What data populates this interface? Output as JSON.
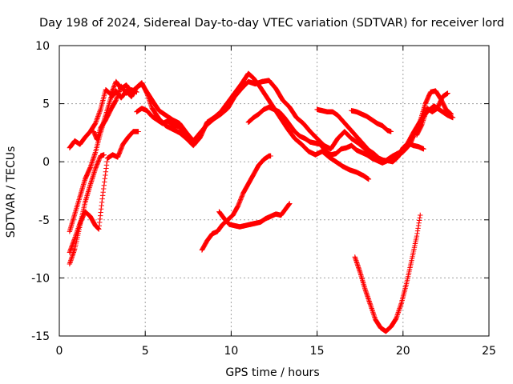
{
  "chart_data": {
    "type": "scatter",
    "title": "Day 198 of 2024, Sidereal Day-to-day VTEC variation (SDTVAR) for receiver lord",
    "xlabel": "GPS time / hours",
    "ylabel": "SDTVAR / TECUs",
    "xlim": [
      0,
      25
    ],
    "ylim": [
      -15,
      10
    ],
    "xticks": [
      0,
      5,
      10,
      15,
      20,
      25
    ],
    "yticks": [
      -15,
      -10,
      -5,
      0,
      5,
      10
    ],
    "grid": true,
    "legend": "none",
    "marker": "+",
    "series": [
      {
        "color": "#ff0000",
        "points": [
          [
            0.6,
            1.2
          ],
          [
            0.9,
            1.8
          ],
          [
            1.2,
            1.5
          ],
          [
            1.5,
            2.1
          ],
          [
            1.8,
            2.6
          ],
          [
            2.1,
            3.3
          ],
          [
            2.4,
            4.5
          ],
          [
            2.7,
            6.2
          ],
          [
            3.0,
            5.8
          ],
          [
            3.3,
            6.9
          ],
          [
            3.6,
            6.3
          ],
          [
            3.9,
            6.6
          ],
          [
            4.2,
            6.0
          ],
          [
            4.5,
            6.4
          ],
          [
            4.8,
            6.8
          ],
          [
            5.1,
            5.9
          ],
          [
            5.4,
            4.6
          ],
          [
            5.8,
            3.7
          ],
          [
            6.2,
            3.1
          ],
          [
            6.6,
            2.8
          ],
          [
            7.0,
            2.5
          ],
          [
            7.4,
            2.0
          ],
          [
            7.8,
            1.4
          ],
          [
            8.2,
            2.1
          ],
          [
            8.6,
            3.4
          ],
          [
            9.0,
            3.8
          ],
          [
            9.4,
            4.3
          ],
          [
            9.8,
            5.1
          ],
          [
            10.2,
            5.9
          ],
          [
            10.6,
            6.7
          ],
          [
            11.0,
            7.6
          ],
          [
            11.3,
            7.2
          ],
          [
            11.7,
            6.4
          ],
          [
            12.1,
            5.5
          ],
          [
            12.5,
            4.6
          ],
          [
            12.9,
            3.7
          ],
          [
            13.3,
            2.8
          ],
          [
            13.7,
            2.0
          ],
          [
            14.1,
            1.5
          ],
          [
            14.5,
            0.9
          ],
          [
            14.9,
            0.6
          ],
          [
            15.3,
            0.9
          ],
          [
            15.7,
            0.4
          ],
          [
            16.1,
            0.0
          ],
          [
            16.5,
            -0.4
          ],
          [
            16.9,
            -0.7
          ],
          [
            17.3,
            -0.9
          ],
          [
            17.7,
            -1.2
          ],
          [
            18.0,
            -1.5
          ]
        ]
      },
      {
        "color": "#ff0000",
        "points": [
          [
            0.6,
            -6.0
          ],
          [
            0.9,
            -4.5
          ],
          [
            1.2,
            -3.0
          ],
          [
            1.5,
            -1.5
          ],
          [
            1.8,
            -0.5
          ],
          [
            2.1,
            0.8
          ],
          [
            2.4,
            2.5
          ],
          [
            2.7,
            4.0
          ],
          [
            3.0,
            5.5
          ],
          [
            3.3,
            6.1
          ],
          [
            3.6,
            5.5
          ],
          [
            3.9,
            6.1
          ],
          [
            4.2,
            5.6
          ],
          [
            4.5,
            6.4
          ],
          [
            4.8,
            6.7
          ],
          [
            5.1,
            6.0
          ],
          [
            5.4,
            5.3
          ],
          [
            5.8,
            4.4
          ],
          [
            6.2,
            4.0
          ],
          [
            6.6,
            3.6
          ],
          [
            7.0,
            3.3
          ],
          [
            7.4,
            2.5
          ],
          [
            7.8,
            1.8
          ],
          [
            8.2,
            2.5
          ],
          [
            8.6,
            3.2
          ],
          [
            9.0,
            3.7
          ],
          [
            9.4,
            4.1
          ],
          [
            9.8,
            4.6
          ],
          [
            10.2,
            5.6
          ],
          [
            10.6,
            6.3
          ],
          [
            11.0,
            6.9
          ],
          [
            11.4,
            6.7
          ],
          [
            11.8,
            6.9
          ],
          [
            12.2,
            7.0
          ],
          [
            12.6,
            6.3
          ],
          [
            13.0,
            5.3
          ],
          [
            13.4,
            4.7
          ],
          [
            13.8,
            3.8
          ],
          [
            14.2,
            3.3
          ],
          [
            14.6,
            2.6
          ],
          [
            15.0,
            2.0
          ],
          [
            15.4,
            1.4
          ],
          [
            15.8,
            1.1
          ],
          [
            16.2,
            2.0
          ],
          [
            16.6,
            2.6
          ],
          [
            17.0,
            2.0
          ],
          [
            17.4,
            1.6
          ],
          [
            17.8,
            1.1
          ],
          [
            18.2,
            0.6
          ],
          [
            18.6,
            0.2
          ],
          [
            19.0,
            0.1
          ],
          [
            19.4,
            0.5
          ],
          [
            19.8,
            0.8
          ],
          [
            20.2,
            1.4
          ],
          [
            20.6,
            2.5
          ],
          [
            21.0,
            3.5
          ],
          [
            21.4,
            4.3
          ],
          [
            21.8,
            4.8
          ],
          [
            22.2,
            4.4
          ],
          [
            22.6,
            4.0
          ],
          [
            22.9,
            3.8
          ]
        ]
      },
      {
        "color": "#ff0000",
        "points": [
          [
            0.6,
            -7.8
          ],
          [
            0.9,
            -6.6
          ],
          [
            1.2,
            -5.3
          ],
          [
            1.5,
            -4.3
          ],
          [
            1.8,
            -4.7
          ],
          [
            2.1,
            -5.5
          ],
          [
            2.3,
            -5.8
          ],
          [
            2.5,
            -3.2
          ],
          [
            2.8,
            0.3
          ],
          [
            3.1,
            0.6
          ],
          [
            3.4,
            0.4
          ],
          [
            3.7,
            1.5
          ],
          [
            4.0,
            2.1
          ],
          [
            4.3,
            2.6
          ],
          [
            4.6,
            2.6
          ]
        ]
      },
      {
        "color": "#ff0000",
        "points": [
          [
            0.6,
            -8.8
          ],
          [
            0.9,
            -7.5
          ],
          [
            1.2,
            -5.5
          ],
          [
            1.5,
            -3.5
          ],
          [
            1.8,
            -2.0
          ],
          [
            2.1,
            -0.6
          ],
          [
            2.4,
            0.5
          ],
          [
            2.6,
            0.6
          ]
        ]
      },
      {
        "color": "#ff0000",
        "points": [
          [
            2.0,
            2.6
          ],
          [
            2.2,
            1.9
          ],
          [
            2.4,
            2.9
          ],
          [
            2.7,
            3.6
          ],
          [
            3.0,
            4.5
          ],
          [
            3.3,
            5.3
          ],
          [
            3.6,
            6.5
          ],
          [
            3.9,
            5.9
          ],
          [
            4.2,
            6.2
          ],
          [
            4.5,
            6.0
          ]
        ]
      },
      {
        "color": "#ff0000",
        "points": [
          [
            4.5,
            4.3
          ],
          [
            4.8,
            4.6
          ],
          [
            5.1,
            4.4
          ],
          [
            5.4,
            3.9
          ],
          [
            5.7,
            3.6
          ],
          [
            6.0,
            3.3
          ],
          [
            6.3,
            3.5
          ],
          [
            6.6,
            3.2
          ],
          [
            7.0,
            3.0
          ],
          [
            7.4,
            2.2
          ],
          [
            7.7,
            1.6
          ],
          [
            8.0,
            2.0
          ]
        ]
      },
      {
        "color": "#ff0000",
        "points": [
          [
            8.3,
            -7.6
          ],
          [
            8.6,
            -6.8
          ],
          [
            8.9,
            -6.2
          ],
          [
            9.2,
            -6.0
          ],
          [
            9.5,
            -5.4
          ],
          [
            9.8,
            -5.0
          ],
          [
            10.1,
            -4.6
          ],
          [
            10.4,
            -3.8
          ],
          [
            10.7,
            -2.7
          ],
          [
            11.0,
            -1.9
          ],
          [
            11.3,
            -1.1
          ],
          [
            11.6,
            -0.3
          ],
          [
            11.9,
            0.2
          ],
          [
            12.2,
            0.5
          ],
          [
            12.3,
            0.5
          ]
        ]
      },
      {
        "color": "#ff0000",
        "points": [
          [
            9.3,
            -4.3
          ],
          [
            9.6,
            -4.9
          ],
          [
            9.9,
            -5.4
          ],
          [
            10.2,
            -5.5
          ],
          [
            10.5,
            -5.6
          ],
          [
            10.8,
            -5.5
          ],
          [
            11.1,
            -5.4
          ],
          [
            11.4,
            -5.3
          ],
          [
            11.7,
            -5.2
          ],
          [
            12.0,
            -4.9
          ],
          [
            12.3,
            -4.7
          ],
          [
            12.6,
            -4.5
          ],
          [
            12.9,
            -4.6
          ],
          [
            13.2,
            -4.0
          ],
          [
            13.4,
            -3.6
          ]
        ]
      },
      {
        "color": "#ff0000",
        "points": [
          [
            11.0,
            3.4
          ],
          [
            11.3,
            3.8
          ],
          [
            11.6,
            4.1
          ],
          [
            11.9,
            4.5
          ],
          [
            12.2,
            4.7
          ],
          [
            12.5,
            4.5
          ],
          [
            12.8,
            4.3
          ],
          [
            13.1,
            3.8
          ],
          [
            13.4,
            3.2
          ],
          [
            13.7,
            2.6
          ],
          [
            14.0,
            2.2
          ],
          [
            14.3,
            2.0
          ],
          [
            14.6,
            1.7
          ],
          [
            14.9,
            1.6
          ],
          [
            15.2,
            1.5
          ],
          [
            15.5,
            0.9
          ],
          [
            15.8,
            0.6
          ],
          [
            16.1,
            0.7
          ],
          [
            16.4,
            1.1
          ],
          [
            16.7,
            1.2
          ],
          [
            17.0,
            1.4
          ],
          [
            17.3,
            1.0
          ],
          [
            17.6,
            0.8
          ],
          [
            17.9,
            0.6
          ],
          [
            18.2,
            0.3
          ],
          [
            18.5,
            0.1
          ],
          [
            18.8,
            -0.1
          ],
          [
            19.1,
            0.1
          ],
          [
            19.4,
            0.0
          ],
          [
            19.7,
            0.4
          ],
          [
            20.0,
            1.2
          ],
          [
            20.3,
            1.6
          ],
          [
            20.6,
            1.4
          ],
          [
            20.9,
            1.3
          ],
          [
            21.2,
            1.1
          ]
        ]
      },
      {
        "color": "#ff0000",
        "points": [
          [
            15.0,
            4.5
          ],
          [
            15.3,
            4.4
          ],
          [
            15.6,
            4.3
          ],
          [
            15.9,
            4.3
          ],
          [
            16.2,
            4.0
          ],
          [
            16.5,
            3.5
          ],
          [
            16.8,
            3.0
          ],
          [
            17.1,
            2.5
          ],
          [
            17.4,
            2.0
          ],
          [
            17.7,
            1.5
          ],
          [
            18.0,
            1.0
          ],
          [
            18.3,
            0.7
          ],
          [
            18.6,
            0.3
          ],
          [
            18.9,
            0.1
          ],
          [
            19.2,
            0.1
          ],
          [
            19.5,
            0.3
          ],
          [
            19.8,
            0.6
          ],
          [
            20.1,
            1.0
          ],
          [
            20.4,
            1.5
          ],
          [
            20.7,
            2.5
          ],
          [
            21.0,
            3.5
          ],
          [
            21.3,
            5.0
          ],
          [
            21.6,
            6.0
          ],
          [
            21.9,
            6.1
          ],
          [
            22.2,
            5.4
          ],
          [
            22.5,
            4.5
          ],
          [
            22.8,
            4.1
          ]
        ]
      },
      {
        "color": "#ff0000",
        "points": [
          [
            17.0,
            4.4
          ],
          [
            17.3,
            4.3
          ],
          [
            17.6,
            4.1
          ],
          [
            17.9,
            3.9
          ],
          [
            18.2,
            3.6
          ],
          [
            18.5,
            3.3
          ],
          [
            18.8,
            3.1
          ],
          [
            19.1,
            2.7
          ],
          [
            19.3,
            2.6
          ]
        ]
      },
      {
        "color": "#ff0000",
        "points": [
          [
            20.8,
            2.3
          ],
          [
            21.1,
            3.2
          ],
          [
            21.4,
            4.6
          ],
          [
            21.7,
            4.3
          ],
          [
            22.0,
            4.6
          ],
          [
            22.3,
            5.6
          ],
          [
            22.6,
            5.9
          ]
        ]
      },
      {
        "color": "#ff0000",
        "points": [
          [
            17.2,
            -8.2
          ],
          [
            17.5,
            -9.5
          ],
          [
            17.8,
            -11.0
          ],
          [
            18.1,
            -12.3
          ],
          [
            18.4,
            -13.6
          ],
          [
            18.7,
            -14.3
          ],
          [
            19.0,
            -14.6
          ],
          [
            19.3,
            -14.2
          ],
          [
            19.6,
            -13.5
          ],
          [
            19.9,
            -12.2
          ],
          [
            20.2,
            -10.5
          ],
          [
            20.5,
            -8.5
          ],
          [
            20.8,
            -6.4
          ],
          [
            21.0,
            -4.6
          ]
        ]
      }
    ]
  }
}
